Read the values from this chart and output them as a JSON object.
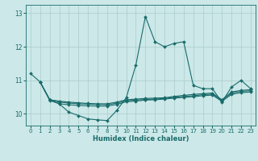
{
  "background_color": "#cce8e8",
  "grid_color": "#aacccc",
  "line_color": "#1a6b6b",
  "xlabel": "Humidex (Indice chaleur)",
  "xlim": [
    -0.5,
    23.5
  ],
  "ylim": [
    9.65,
    13.25
  ],
  "yticks": [
    10,
    11,
    12,
    13
  ],
  "xticks": [
    0,
    1,
    2,
    3,
    4,
    5,
    6,
    7,
    8,
    9,
    10,
    11,
    12,
    13,
    14,
    15,
    16,
    17,
    18,
    19,
    20,
    21,
    22,
    23
  ],
  "series": [
    {
      "x": [
        0,
        1,
        2,
        3,
        4,
        5,
        6,
        7,
        8,
        9,
        10,
        11,
        12,
        13,
        14,
        15,
        16,
        17,
        18,
        19,
        20,
        21,
        22,
        23
      ],
      "y": [
        11.2,
        10.95,
        10.4,
        10.3,
        10.05,
        9.95,
        9.85,
        9.82,
        9.8,
        10.1,
        10.48,
        11.45,
        12.9,
        12.15,
        12.0,
        12.1,
        12.15,
        10.85,
        10.75,
        10.75,
        10.35,
        10.8,
        11.0,
        10.75
      ]
    },
    {
      "x": [
        1,
        2,
        3,
        4,
        5,
        6,
        7,
        8,
        9,
        10,
        11,
        12,
        13,
        14,
        15,
        16,
        17,
        18,
        19,
        20,
        21,
        22,
        23
      ],
      "y": [
        10.95,
        10.42,
        10.38,
        10.35,
        10.33,
        10.31,
        10.3,
        10.3,
        10.35,
        10.42,
        10.44,
        10.46,
        10.47,
        10.48,
        10.52,
        10.55,
        10.58,
        10.6,
        10.62,
        10.42,
        10.65,
        10.7,
        10.72
      ]
    },
    {
      "x": [
        1,
        2,
        3,
        4,
        5,
        6,
        7,
        8,
        9,
        10,
        11,
        12,
        13,
        14,
        15,
        16,
        17,
        18,
        19,
        20,
        21,
        22,
        23
      ],
      "y": [
        10.95,
        10.42,
        10.35,
        10.32,
        10.3,
        10.29,
        10.28,
        10.27,
        10.32,
        10.39,
        10.41,
        10.43,
        10.44,
        10.46,
        10.49,
        10.52,
        10.54,
        10.57,
        10.59,
        10.4,
        10.62,
        10.67,
        10.69
      ]
    },
    {
      "x": [
        1,
        2,
        3,
        4,
        5,
        6,
        7,
        8,
        9,
        10,
        11,
        12,
        13,
        14,
        15,
        16,
        17,
        18,
        19,
        20,
        21,
        22,
        23
      ],
      "y": [
        10.95,
        10.42,
        10.3,
        10.27,
        10.25,
        10.24,
        10.23,
        10.23,
        10.28,
        10.36,
        10.38,
        10.41,
        10.42,
        10.44,
        10.47,
        10.49,
        10.51,
        10.54,
        10.56,
        10.37,
        10.58,
        10.63,
        10.65
      ]
    }
  ],
  "marker": "D",
  "markersize": 2.0,
  "linewidth": 0.8,
  "xlabel_fontsize": 6.0,
  "tick_fontsize": 5.0
}
